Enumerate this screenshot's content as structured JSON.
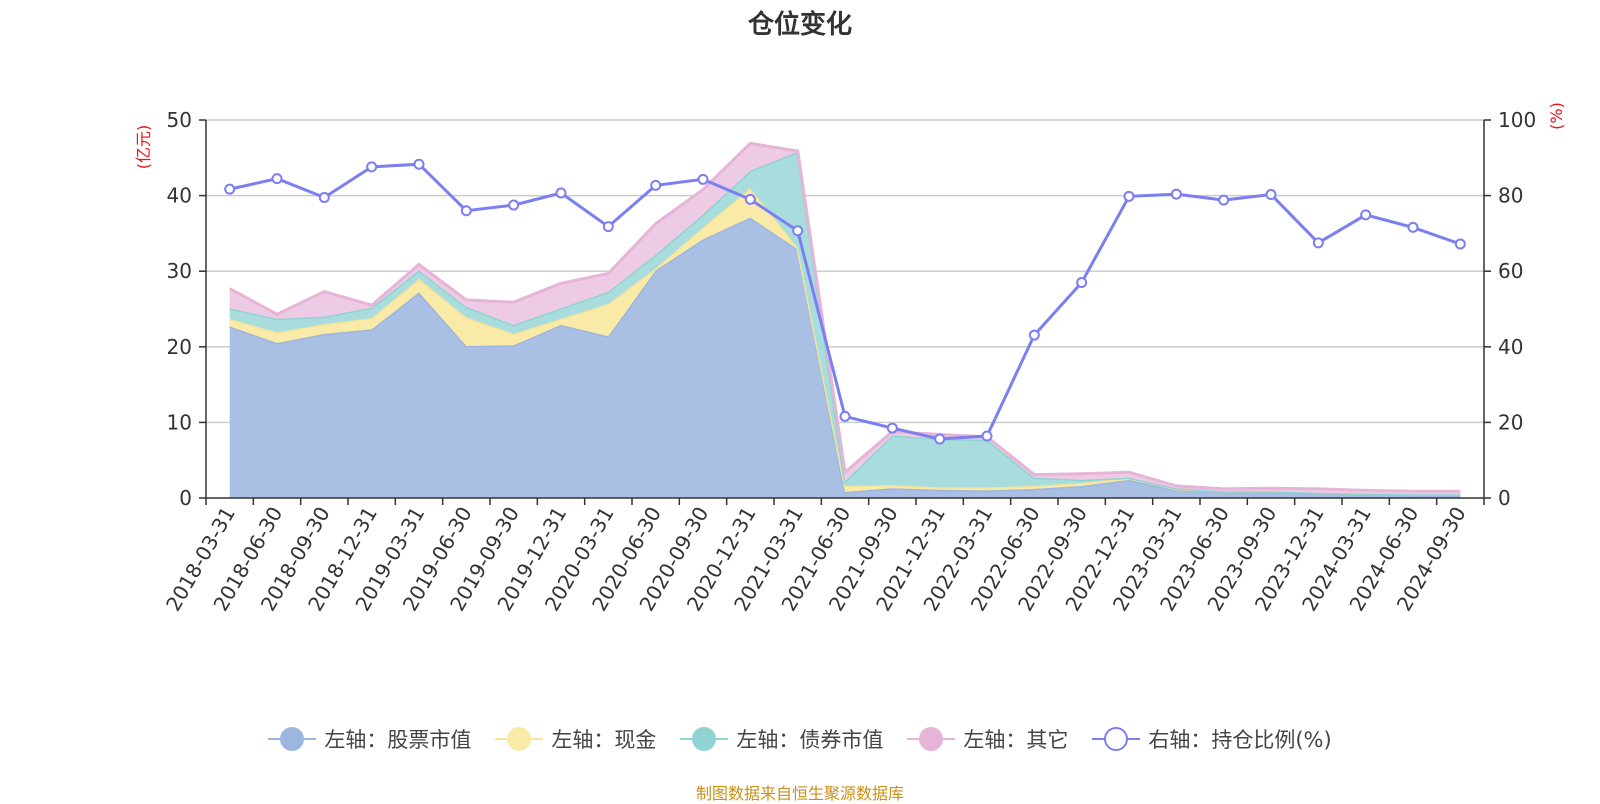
{
  "title": "仓位变化",
  "source": "制图数据来自恒生聚源数据库",
  "chart_data": {
    "type": "area",
    "categories": [
      "2018-03-31",
      "2018-06-30",
      "2018-09-30",
      "2018-12-31",
      "2019-03-31",
      "2019-06-30",
      "2019-09-30",
      "2019-12-31",
      "2020-03-31",
      "2020-06-30",
      "2020-09-30",
      "2020-12-31",
      "2021-03-31",
      "2021-06-30",
      "2021-09-30",
      "2021-12-31",
      "2022-03-31",
      "2022-06-30",
      "2022-09-30",
      "2022-12-31",
      "2023-03-31",
      "2023-06-30",
      "2023-09-30",
      "2023-12-31",
      "2024-03-31",
      "2024-06-30",
      "2024-09-30"
    ],
    "y_left_label": "(亿元)",
    "y_right_label": "(%)",
    "y_left_lim": [
      0,
      50
    ],
    "y_right_lim": [
      0,
      100
    ],
    "y_left_ticks": [
      "0",
      "10",
      "20",
      "30",
      "40",
      "50"
    ],
    "y_right_ticks": [
      "0",
      "20",
      "40",
      "60",
      "80",
      "100"
    ],
    "stacked": true,
    "grid": true,
    "legend_position": "bottom",
    "series": [
      {
        "name": "左轴：股票市值",
        "axis": "left",
        "color": "#a9c0e4",
        "line_color": "#9db6df",
        "values": [
          22.7,
          20.5,
          21.7,
          22.3,
          27.2,
          20.1,
          20.2,
          22.9,
          21.4,
          30.1,
          34.2,
          37.1,
          32.9,
          0.8,
          1.3,
          1.1,
          1.0,
          1.2,
          1.6,
          2.4,
          1.1,
          0.8,
          0.8,
          0.6,
          0.5,
          0.4,
          0.4
        ]
      },
      {
        "name": "左轴：现金",
        "axis": "left",
        "color": "#faeaa8",
        "line_color": "#f5e39a",
        "values": [
          1.0,
          1.4,
          1.3,
          1.5,
          1.8,
          3.8,
          1.5,
          0.8,
          4.3,
          0.3,
          1.6,
          3.9,
          0.2,
          0.8,
          0.4,
          0.3,
          0.4,
          0.4,
          0.4,
          0.3,
          0.1,
          0.1,
          0.1,
          0.1,
          0.1,
          0.1,
          0.1
        ]
      },
      {
        "name": "左轴：债券市值",
        "axis": "left",
        "color": "#a9dcdc",
        "line_color": "#8fd3d3",
        "values": [
          1.4,
          1.8,
          1.0,
          1.4,
          1.1,
          1.4,
          1.2,
          1.4,
          1.6,
          1.8,
          1.7,
          2.3,
          12.7,
          0.6,
          6.6,
          6.4,
          6.3,
          1.1,
          0.4,
          0.0,
          0.1,
          0.0,
          0.0,
          0.0,
          0.0,
          0.0,
          0.0
        ]
      },
      {
        "name": "左轴：其它",
        "axis": "left",
        "color": "#eecbe4",
        "line_color": "#e6b4d7",
        "values": [
          2.6,
          0.6,
          3.3,
          0.3,
          0.8,
          0.9,
          3.0,
          3.3,
          2.4,
          4.1,
          3.3,
          3.6,
          0.1,
          1.2,
          0.5,
          0.6,
          0.4,
          0.4,
          0.8,
          0.7,
          0.3,
          0.3,
          0.4,
          0.5,
          0.4,
          0.4,
          0.4
        ]
      },
      {
        "name": "右轴：持仓比例(%)",
        "axis": "right",
        "color": "#7b7ff0",
        "values": [
          81.7,
          84.5,
          79.5,
          87.6,
          88.3,
          76.0,
          77.5,
          80.7,
          71.8,
          82.7,
          84.3,
          79.0,
          70.7,
          21.6,
          18.5,
          15.6,
          16.4,
          43.1,
          57.0,
          79.8,
          80.4,
          78.8,
          80.3,
          67.5,
          74.9,
          71.6,
          67.2
        ]
      }
    ]
  }
}
